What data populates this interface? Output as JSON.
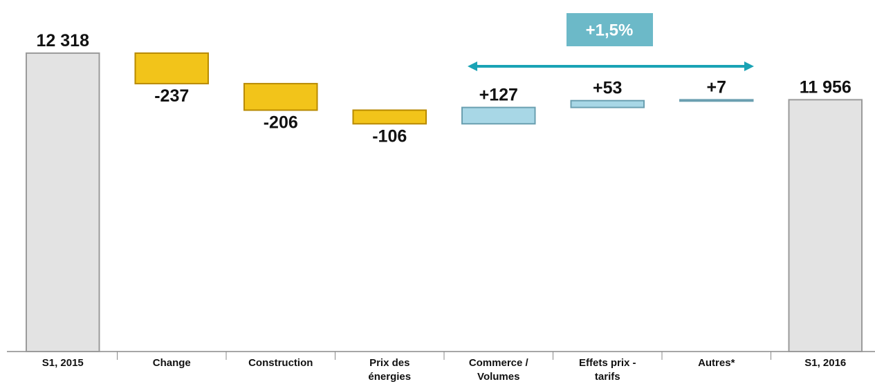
{
  "chart_data": {
    "type": "waterfall",
    "categories": [
      "S1, 2015",
      "Change",
      "Construction",
      "Prix des énergies",
      "Commerce / Volumes",
      "Effets prix - tarifs",
      "Autres*",
      "S1, 2016"
    ],
    "values": [
      12318,
      -237,
      -206,
      -106,
      127,
      53,
      7,
      11956
    ],
    "value_labels": [
      "12 318",
      "-237",
      "-206",
      "-106",
      "+127",
      "+53",
      "+7",
      "11 956"
    ],
    "colors": {
      "total": "#e3e3e3",
      "decrease": "#f2c41a",
      "increase": "#a8d7e6"
    },
    "ylim": [
      10000,
      12500
    ],
    "annotation": "+1,5%"
  }
}
